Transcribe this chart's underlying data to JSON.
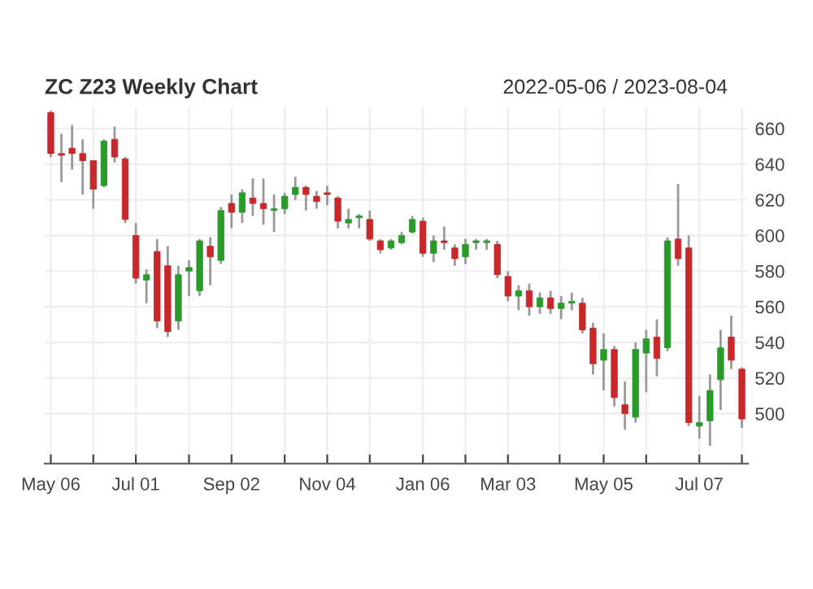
{
  "chart_data": {
    "type": "candlestick",
    "title": "ZC Z23 Weekly Chart",
    "subtitle": "2022-05-06 / 2023-08-04",
    "x": [
      "2022-05-06",
      "2022-05-13",
      "2022-05-20",
      "2022-05-27",
      "2022-06-03",
      "2022-06-10",
      "2022-06-17",
      "2022-06-24",
      "2022-07-01",
      "2022-07-08",
      "2022-07-15",
      "2022-07-22",
      "2022-07-29",
      "2022-08-05",
      "2022-08-12",
      "2022-08-19",
      "2022-08-26",
      "2022-09-02",
      "2022-09-09",
      "2022-09-16",
      "2022-09-23",
      "2022-09-30",
      "2022-10-07",
      "2022-10-14",
      "2022-10-21",
      "2022-10-28",
      "2022-11-04",
      "2022-11-11",
      "2022-11-18",
      "2022-11-25",
      "2022-12-02",
      "2022-12-09",
      "2022-12-16",
      "2022-12-23",
      "2022-12-30",
      "2023-01-06",
      "2023-01-13",
      "2023-01-20",
      "2023-01-27",
      "2023-02-03",
      "2023-02-10",
      "2023-02-17",
      "2023-02-24",
      "2023-03-03",
      "2023-03-10",
      "2023-03-17",
      "2023-03-24",
      "2023-03-31",
      "2023-04-07",
      "2023-04-14",
      "2023-04-21",
      "2023-04-28",
      "2023-05-05",
      "2023-05-12",
      "2023-05-19",
      "2023-05-26",
      "2023-06-02",
      "2023-06-09",
      "2023-06-16",
      "2023-06-23",
      "2023-06-30",
      "2023-07-07",
      "2023-07-14",
      "2023-07-21",
      "2023-07-28",
      "2023-08-04"
    ],
    "ohlc": [
      [
        669,
        670,
        644,
        646
      ],
      [
        646,
        657,
        630,
        645
      ],
      [
        649,
        662,
        637,
        646
      ],
      [
        646,
        654,
        623,
        642
      ],
      [
        642,
        642,
        615,
        626
      ],
      [
        628,
        654,
        627,
        653
      ],
      [
        654,
        661,
        641,
        644
      ],
      [
        643,
        644,
        607,
        609
      ],
      [
        600,
        607,
        573,
        576
      ],
      [
        575,
        581,
        562,
        578
      ],
      [
        591,
        598,
        548,
        552
      ],
      [
        583,
        594,
        543,
        546
      ],
      [
        552,
        583,
        547,
        578
      ],
      [
        580,
        586,
        566,
        582
      ],
      [
        569,
        598,
        566,
        597
      ],
      [
        594,
        599,
        572,
        588
      ],
      [
        586,
        616,
        584,
        614
      ],
      [
        618,
        623,
        604,
        613
      ],
      [
        613,
        626,
        607,
        624
      ],
      [
        621,
        632,
        611,
        618
      ],
      [
        618,
        632,
        606,
        615
      ],
      [
        614,
        623,
        602,
        615
      ],
      [
        615,
        624,
        612,
        622
      ],
      [
        623,
        633,
        620,
        627
      ],
      [
        627,
        628,
        614,
        623
      ],
      [
        622,
        625,
        615,
        619
      ],
      [
        624,
        628,
        617,
        623
      ],
      [
        621,
        622,
        604,
        608
      ],
      [
        607,
        615,
        604,
        609
      ],
      [
        610,
        612,
        604,
        611
      ],
      [
        609,
        614,
        597,
        598
      ],
      [
        597,
        598,
        590,
        592
      ],
      [
        593,
        598,
        592,
        597
      ],
      [
        596,
        602,
        595,
        600
      ],
      [
        602,
        611,
        601,
        609
      ],
      [
        608,
        610,
        588,
        590
      ],
      [
        590,
        600,
        585,
        597
      ],
      [
        597,
        605,
        592,
        596
      ],
      [
        593,
        595,
        583,
        587
      ],
      [
        588,
        598,
        584,
        595
      ],
      [
        596,
        598,
        592,
        597
      ],
      [
        596,
        598,
        592,
        597
      ],
      [
        595,
        597,
        576,
        578
      ],
      [
        577,
        580,
        563,
        566
      ],
      [
        566,
        572,
        558,
        569
      ],
      [
        569,
        573,
        555,
        560
      ],
      [
        560,
        568,
        556,
        565
      ],
      [
        565,
        569,
        556,
        559
      ],
      [
        559,
        566,
        553,
        562
      ],
      [
        562,
        568,
        558,
        563
      ],
      [
        562,
        565,
        545,
        547
      ],
      [
        548,
        551,
        522,
        528
      ],
      [
        530,
        545,
        513,
        536
      ],
      [
        536,
        538,
        504,
        509
      ],
      [
        505,
        518,
        491,
        500
      ],
      [
        498,
        540,
        495,
        536
      ],
      [
        534,
        547,
        512,
        542
      ],
      [
        543,
        553,
        521,
        531
      ],
      [
        537,
        599,
        535,
        597
      ],
      [
        598,
        629,
        583,
        587
      ],
      [
        593,
        600,
        493,
        495
      ],
      [
        493,
        510,
        486,
        495
      ],
      [
        496,
        522,
        482,
        513
      ],
      [
        519,
        547,
        502,
        537
      ],
      [
        543,
        555,
        525,
        530
      ],
      [
        525,
        526,
        492,
        497
      ]
    ],
    "colors": [
      "#c8282a",
      "#c8282a",
      "#c8282a",
      "#c8282a",
      "#c8282a",
      "#2a9a2a",
      "#c8282a",
      "#c8282a",
      "#c8282a",
      "#2a9a2a",
      "#c8282a",
      "#c8282a",
      "#2a9a2a",
      "#2a9a2a",
      "#2a9a2a",
      "#c8282a",
      "#2a9a2a",
      "#c8282a",
      "#2a9a2a",
      "#c8282a",
      "#c8282a",
      "#2a9a2a",
      "#2a9a2a",
      "#2a9a2a",
      "#c8282a",
      "#c8282a",
      "#c8282a",
      "#c8282a",
      "#2a9a2a",
      "#2a9a2a",
      "#c8282a",
      "#c8282a",
      "#2a9a2a",
      "#2a9a2a",
      "#2a9a2a",
      "#c8282a",
      "#2a9a2a",
      "#c8282a",
      "#c8282a",
      "#2a9a2a",
      "#2a9a2a",
      "#2a9a2a",
      "#c8282a",
      "#c8282a",
      "#2a9a2a",
      "#c8282a",
      "#2a9a2a",
      "#c8282a",
      "#2a9a2a",
      "#2a9a2a",
      "#c8282a",
      "#c8282a",
      "#2a9a2a",
      "#c8282a",
      "#c8282a",
      "#2a9a2a",
      "#2a9a2a",
      "#c8282a",
      "#2a9a2a",
      "#c8282a",
      "#c8282a",
      "#2a9a2a",
      "#2a9a2a",
      "#2a9a2a",
      "#c8282a",
      "#c8282a"
    ],
    "xlim": [
      "2022-05-02",
      "2023-08-08"
    ],
    "xticks": [
      {
        "value": "2022-05-06",
        "label": "May 06"
      },
      {
        "value": "2022-06-03",
        "label": null
      },
      {
        "value": "2022-07-01",
        "label": "Jul 01"
      },
      {
        "value": "2022-08-05",
        "label": null
      },
      {
        "value": "2022-09-02",
        "label": "Sep 02"
      },
      {
        "value": "2022-10-07",
        "label": null
      },
      {
        "value": "2022-11-04",
        "label": "Nov 04"
      },
      {
        "value": "2022-12-02",
        "label": null
      },
      {
        "value": "2023-01-06",
        "label": "Jan 06"
      },
      {
        "value": "2023-02-03",
        "label": null
      },
      {
        "value": "2023-03-03",
        "label": "Mar 03"
      },
      {
        "value": "2023-04-06",
        "label": null
      },
      {
        "value": "2023-05-05",
        "label": "May 05"
      },
      {
        "value": "2023-06-02",
        "label": null
      },
      {
        "value": "2023-07-07",
        "label": "Jul 07"
      },
      {
        "value": "2023-08-04",
        "label": null
      }
    ],
    "ylim": [
      472,
      672
    ],
    "yticks": [
      500,
      520,
      540,
      560,
      580,
      600,
      620,
      640,
      660
    ],
    "grid": true
  }
}
